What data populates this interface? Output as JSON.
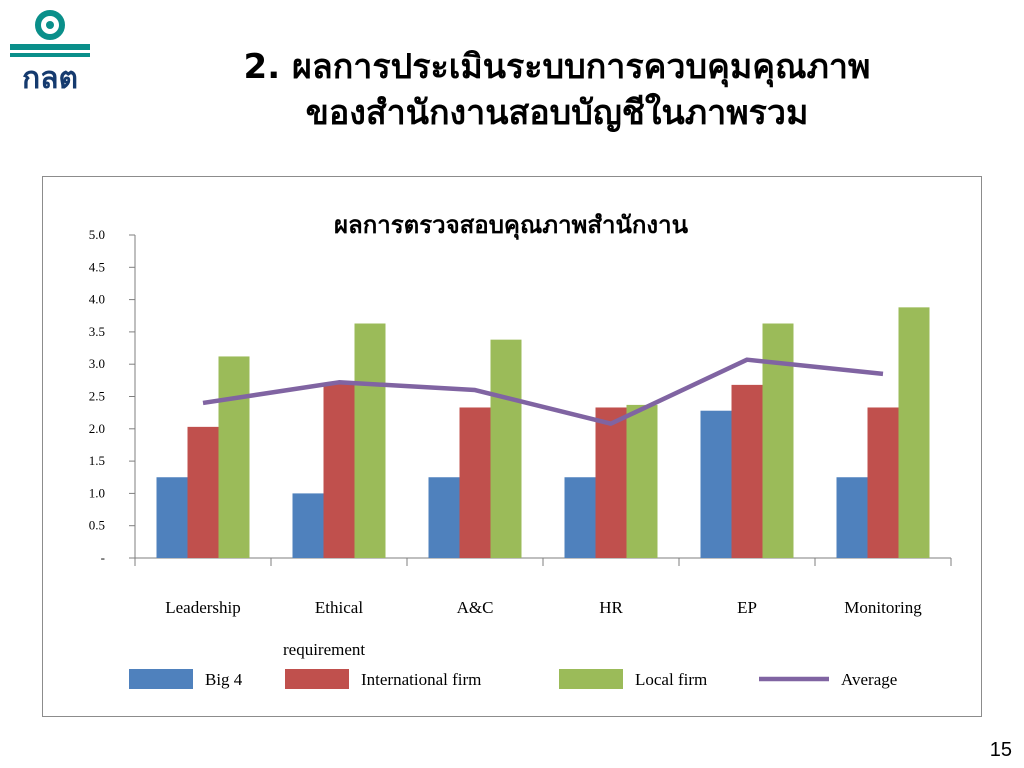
{
  "slide": {
    "title_line1": "2. ผลการประเมินระบบการควบคุมคุณภาพ",
    "title_line2": "ของสำนักงานสอบบัญชีในภาพรวม",
    "page_number": "15",
    "logo_text": "กลต"
  },
  "colors": {
    "logo_teal": "#0a8f8a",
    "logo_navy": "#153a6e",
    "big4": "#4f81bd",
    "international": "#c0504d",
    "local": "#9bbb59",
    "average": "#8064a2",
    "axis": "#7f7f7f"
  },
  "chart_data": {
    "type": "bar",
    "title": "ผลการตรวจสอบคุณภาพสำนักงาน",
    "xlabel": "",
    "ylabel": "",
    "ylim": [
      0,
      5
    ],
    "yticks": [
      0,
      0.5,
      1,
      1.5,
      2,
      2.5,
      3,
      3.5,
      4,
      4.5,
      5
    ],
    "ytick_labels": [
      "-",
      "0.5",
      "1.0",
      "1.5",
      "2.0",
      "2.5",
      "3.0",
      "3.5",
      "4.0",
      "4.5",
      "5.0"
    ],
    "categories": [
      "Leadership",
      "Ethical requirement",
      "A&C",
      "HR",
      "EP",
      "Monitoring"
    ],
    "category_labels": [
      [
        "Leadership"
      ],
      [
        "Ethical",
        "requirement"
      ],
      [
        "A&C"
      ],
      [
        "HR"
      ],
      [
        "EP"
      ],
      [
        "Monitoring"
      ]
    ],
    "series": [
      {
        "name": "Big 4",
        "type": "bar",
        "values": [
          1.25,
          1.0,
          1.25,
          1.25,
          2.28,
          1.25
        ]
      },
      {
        "name": "International firm",
        "type": "bar",
        "values": [
          2.03,
          2.7,
          2.33,
          2.33,
          2.68,
          2.33
        ]
      },
      {
        "name": "Local firm",
        "type": "bar",
        "values": [
          3.12,
          3.63,
          3.38,
          2.37,
          3.63,
          3.88
        ]
      },
      {
        "name": "Average",
        "type": "line",
        "values": [
          2.4,
          2.72,
          2.6,
          2.08,
          3.07,
          2.85
        ]
      }
    ],
    "grid": false,
    "legend_position": "bottom"
  }
}
